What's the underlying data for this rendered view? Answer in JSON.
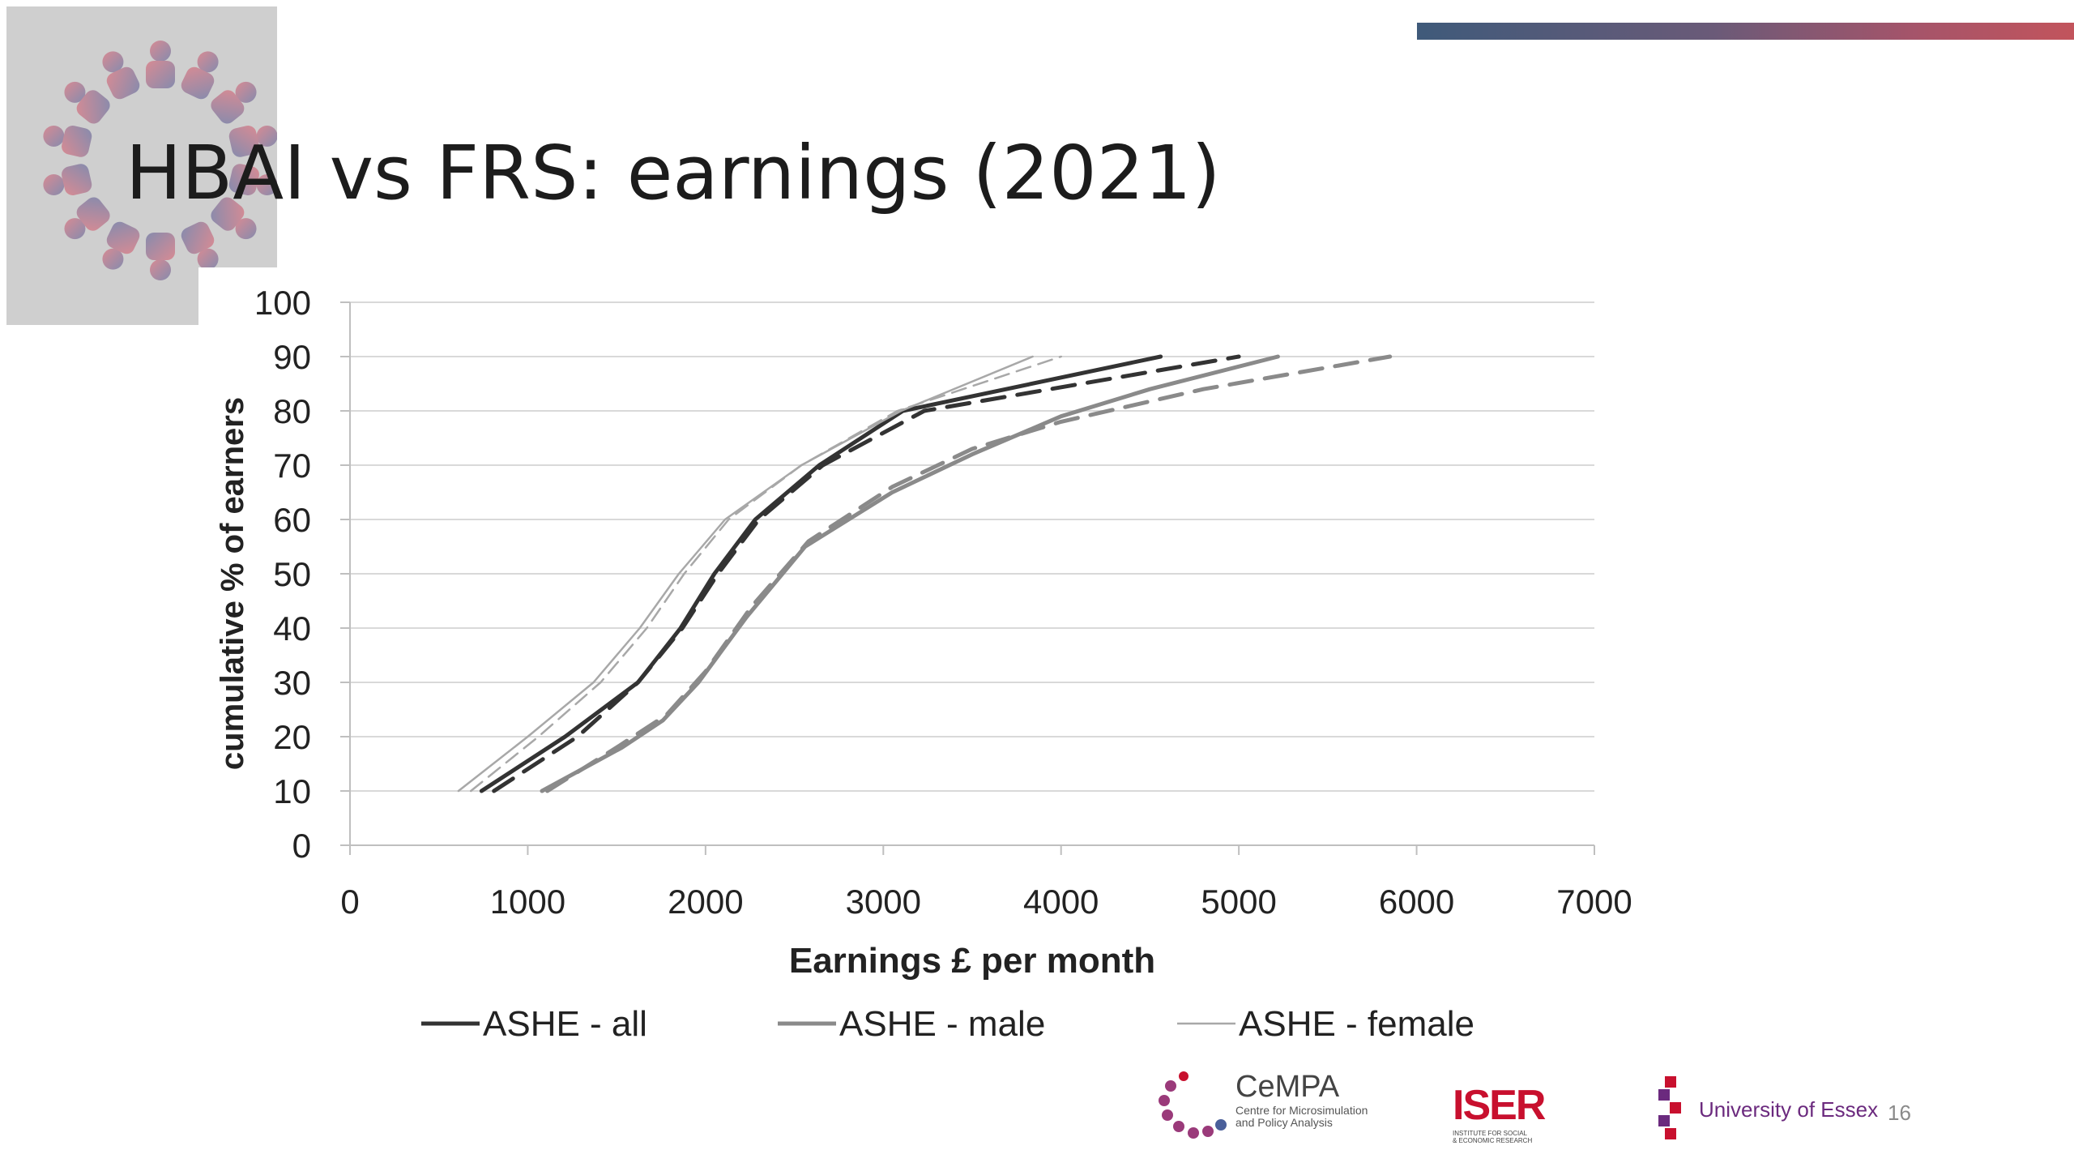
{
  "slide": {
    "title": "HBAI vs FRS: earnings (2021)",
    "page_number": "16",
    "accent_bar_colors": [
      "#3f5a7a",
      "#c2545c"
    ]
  },
  "footer_logos": {
    "cempa": {
      "title": "CeMPA",
      "subtitle_line1": "Centre for Microsimulation",
      "subtitle_line2": "and Policy Analysis"
    },
    "iser": {
      "title": "ISER",
      "subtitle_line1": "INSTITUTE FOR SOCIAL",
      "subtitle_line2": "& ECONOMIC RESEARCH"
    },
    "essex": {
      "title": "University of Essex"
    }
  },
  "chart_data": {
    "type": "line",
    "title": "",
    "xlabel": "Earnings £ per month",
    "ylabel": "cumulative % of earners",
    "xlim": [
      0,
      7000
    ],
    "ylim": [
      0,
      100
    ],
    "x_ticks": [
      0,
      1000,
      2000,
      3000,
      4000,
      5000,
      6000,
      7000
    ],
    "y_ticks": [
      0,
      10,
      20,
      30,
      40,
      50,
      60,
      70,
      80,
      90,
      100
    ],
    "grid": "horizontal",
    "legend_position": "bottom",
    "series": [
      {
        "name": "ASHE - all",
        "color": "#333333",
        "dashed": false,
        "width": 5,
        "points": [
          [
            740,
            10
          ],
          [
            1210,
            20
          ],
          [
            1620,
            30
          ],
          [
            1860,
            40
          ],
          [
            2050,
            50
          ],
          [
            2280,
            60
          ],
          [
            2640,
            70
          ],
          [
            3110,
            80
          ],
          [
            4560,
            90
          ]
        ]
      },
      {
        "name": "ASHE - male",
        "color": "#8a8a8a",
        "dashed": false,
        "width": 5,
        "points": [
          [
            1080,
            10
          ],
          [
            1530,
            18
          ],
          [
            1760,
            23
          ],
          [
            1960,
            30
          ],
          [
            2230,
            42
          ],
          [
            2560,
            55
          ],
          [
            3050,
            65
          ],
          [
            3500,
            72
          ],
          [
            4000,
            79
          ],
          [
            4500,
            84
          ],
          [
            5220,
            90
          ]
        ]
      },
      {
        "name": "ASHE - female",
        "color": "#a8a8a8",
        "dashed": false,
        "width": 2.5,
        "points": [
          [
            610,
            10
          ],
          [
            1000,
            20
          ],
          [
            1370,
            30
          ],
          [
            1630,
            40
          ],
          [
            1850,
            50
          ],
          [
            2110,
            60
          ],
          [
            2540,
            70
          ],
          [
            3100,
            80
          ],
          [
            3840,
            90
          ]
        ]
      },
      {
        "name": "",
        "color": "#333333",
        "dashed": true,
        "width": 5,
        "points": [
          [
            810,
            10
          ],
          [
            1280,
            20
          ],
          [
            1620,
            30
          ],
          [
            1870,
            40
          ],
          [
            2070,
            50
          ],
          [
            2300,
            60
          ],
          [
            2660,
            70
          ],
          [
            3230,
            80
          ],
          [
            5000,
            90
          ]
        ]
      },
      {
        "name": "",
        "color": "#8a8a8a",
        "dashed": true,
        "width": 5,
        "points": [
          [
            1110,
            10
          ],
          [
            1500,
            18
          ],
          [
            1780,
            24
          ],
          [
            2000,
            32
          ],
          [
            2260,
            44
          ],
          [
            2580,
            56
          ],
          [
            3050,
            66
          ],
          [
            3500,
            73
          ],
          [
            4000,
            78
          ],
          [
            4800,
            84
          ],
          [
            5850,
            90
          ]
        ]
      },
      {
        "name": "",
        "color": "#a8a8a8",
        "dashed": true,
        "width": 2.5,
        "points": [
          [
            680,
            10
          ],
          [
            1060,
            20
          ],
          [
            1410,
            30
          ],
          [
            1670,
            40
          ],
          [
            1880,
            50
          ],
          [
            2130,
            60
          ],
          [
            2540,
            70
          ],
          [
            3080,
            80
          ],
          [
            4000,
            90
          ]
        ]
      }
    ]
  }
}
